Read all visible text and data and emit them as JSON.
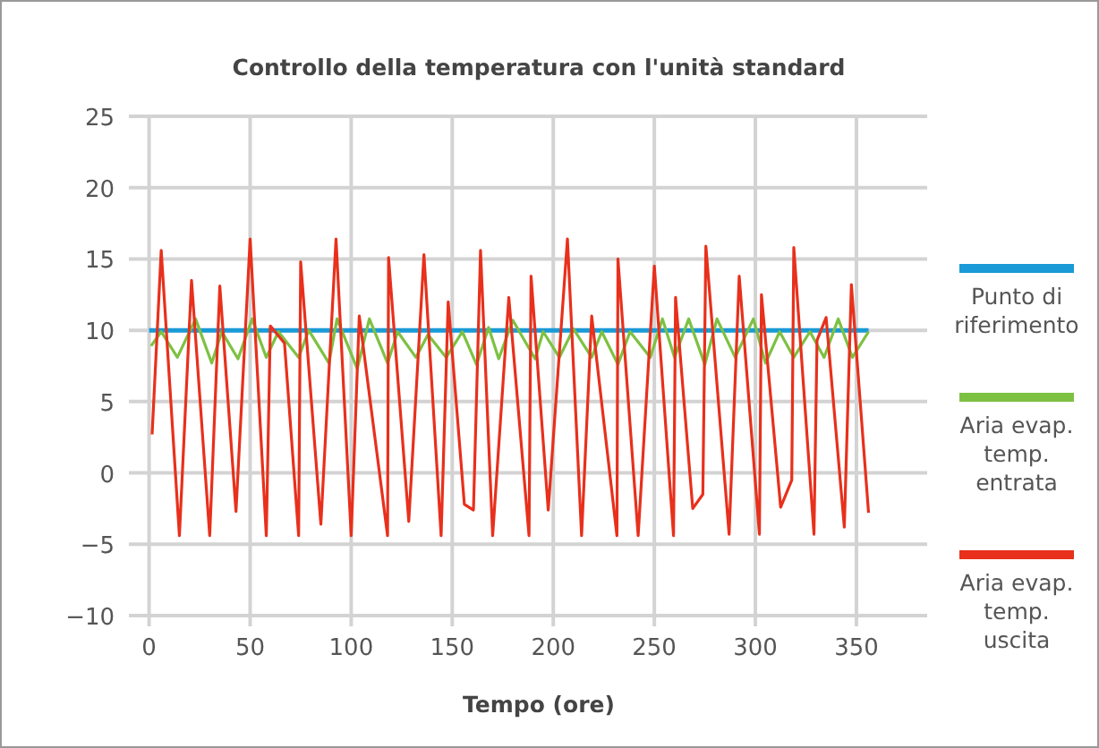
{
  "chart_data": {
    "type": "line",
    "title": "Controllo della temperatura con l'unità standard",
    "xlabel": "Tempo (ore)",
    "xlim": [
      -10,
      385
    ],
    "xticks": [
      0,
      50,
      100,
      150,
      200,
      250,
      300,
      350
    ],
    "ylim": [
      -10,
      25
    ],
    "yticks": [
      -10,
      -5,
      0,
      5,
      10,
      15,
      20,
      25
    ],
    "grid": true,
    "legend": "right",
    "marker": "none",
    "line_style": "solid",
    "series": [
      {
        "name": "Punto di riferimento",
        "color": "#1a9ad6",
        "x": [
          0,
          356
        ],
        "values": [
          10,
          10
        ]
      },
      {
        "name": "Aria evap. temp. entrata",
        "color": "#7dc142",
        "x": [
          1,
          6,
          14,
          23,
          31,
          36,
          44,
          51,
          58,
          64,
          74,
          79,
          89,
          93,
          103,
          109,
          118,
          123,
          132,
          138,
          147,
          155,
          162,
          168,
          173,
          180,
          191,
          195,
          203,
          210,
          219,
          224,
          232,
          238,
          248,
          254,
          260,
          267,
          275,
          281,
          290,
          299,
          305,
          312,
          319,
          327,
          334,
          341,
          348,
          356
        ],
        "values": [
          8.9,
          9.9,
          8.1,
          10.8,
          7.7,
          9.9,
          8,
          10.8,
          8.1,
          9.9,
          8.1,
          10,
          7.7,
          10.8,
          7.3,
          10.8,
          7.7,
          9.9,
          8.1,
          9.7,
          8.1,
          9.9,
          7.6,
          10.2,
          8,
          10.7,
          8,
          9.9,
          8.1,
          10.1,
          8.1,
          9.9,
          7.6,
          9.9,
          8.1,
          10.8,
          8.1,
          10.8,
          7.6,
          10.8,
          8.1,
          10.8,
          7.7,
          9.9,
          8.1,
          9.9,
          8.1,
          10.8,
          8.1,
          9.9
        ]
      },
      {
        "name": "Aria evap. temp. uscita",
        "color": "#e8301c",
        "x": [
          1.5,
          6,
          15,
          21,
          30,
          35,
          43,
          50,
          58,
          60,
          67,
          74,
          75,
          85,
          92.5,
          100,
          104,
          118,
          118.5,
          128.5,
          136,
          144.5,
          148,
          156,
          160.5,
          164,
          170,
          178,
          188,
          189,
          197.5,
          207,
          214,
          219,
          231.5,
          232,
          242,
          250,
          259.5,
          260.5,
          269,
          274,
          275.5,
          287,
          292,
          302,
          303,
          312.5,
          318,
          319,
          329,
          330.5,
          335,
          344,
          347.5,
          356
        ],
        "values": [
          2.7,
          15.6,
          -4.4,
          13.5,
          -4.4,
          13.1,
          -2.7,
          16.4,
          -4.4,
          10.3,
          9.1,
          -4.4,
          14.8,
          -3.6,
          16.4,
          -4.4,
          11,
          -4.4,
          15.1,
          -3.4,
          15.3,
          -4.4,
          12,
          -2.2,
          -2.6,
          15.6,
          -4.4,
          12.3,
          -4.4,
          13.8,
          -2.6,
          16.4,
          -4.4,
          11,
          -4.4,
          15,
          -4.4,
          14.5,
          -4.4,
          12.3,
          -2.5,
          -1.5,
          15.9,
          -4.3,
          13.8,
          -4.3,
          12.5,
          -2.4,
          -0.5,
          15.8,
          -4.3,
          9.3,
          10.9,
          -3.8,
          13.2,
          -2.8
        ]
      }
    ]
  }
}
